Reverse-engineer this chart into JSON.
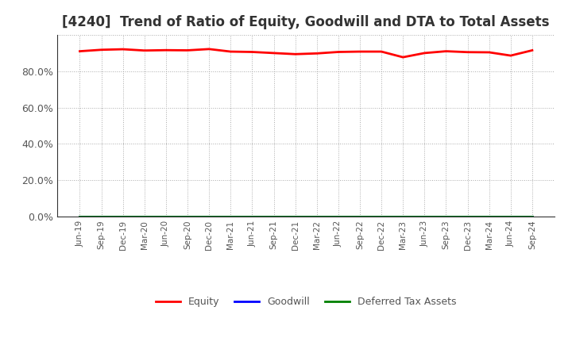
{
  "title": "[4240]  Trend of Ratio of Equity, Goodwill and DTA to Total Assets",
  "x_labels": [
    "Jun-19",
    "Sep-19",
    "Dec-19",
    "Mar-20",
    "Jun-20",
    "Sep-20",
    "Dec-20",
    "Mar-21",
    "Jun-21",
    "Sep-21",
    "Dec-21",
    "Mar-22",
    "Jun-22",
    "Sep-22",
    "Dec-22",
    "Mar-23",
    "Jun-23",
    "Sep-23",
    "Dec-23",
    "Mar-24",
    "Jun-24",
    "Sep-24"
  ],
  "equity": [
    0.91,
    0.918,
    0.921,
    0.914,
    0.916,
    0.915,
    0.922,
    0.908,
    0.906,
    0.9,
    0.894,
    0.898,
    0.906,
    0.908,
    0.908,
    0.877,
    0.9,
    0.91,
    0.905,
    0.904,
    0.886,
    0.915
  ],
  "goodwill": [
    0.0,
    0.0,
    0.0,
    0.0,
    0.0,
    0.0,
    0.0,
    0.0,
    0.0,
    0.0,
    0.0,
    0.0,
    0.0,
    0.0,
    0.0,
    0.0,
    0.0,
    0.0,
    0.0,
    0.0,
    0.0,
    0.0
  ],
  "dta": [
    0.0,
    0.0,
    0.0,
    0.0,
    0.0,
    0.0,
    0.0,
    0.0,
    0.0,
    0.0,
    0.0,
    0.0,
    0.0,
    0.0,
    0.0,
    0.0,
    0.0,
    0.0,
    0.0,
    0.0,
    0.0,
    0.0
  ],
  "equity_color": "#FF0000",
  "goodwill_color": "#0000FF",
  "dta_color": "#008000",
  "ylim_min": 0.0,
  "ylim_max": 1.0,
  "yticks": [
    0.0,
    0.2,
    0.4,
    0.6,
    0.8,
    1.0
  ],
  "ytick_labels": [
    "0.0%",
    "20.0%",
    "40.0%",
    "60.0%",
    "80.0%",
    ""
  ],
  "grid_color": "#aaaaaa",
  "background_color": "#ffffff",
  "plot_bg_color": "#ffffff",
  "legend_equity": "Equity",
  "legend_goodwill": "Goodwill",
  "legend_dta": "Deferred Tax Assets",
  "title_fontsize": 12,
  "line_width": 2.0
}
